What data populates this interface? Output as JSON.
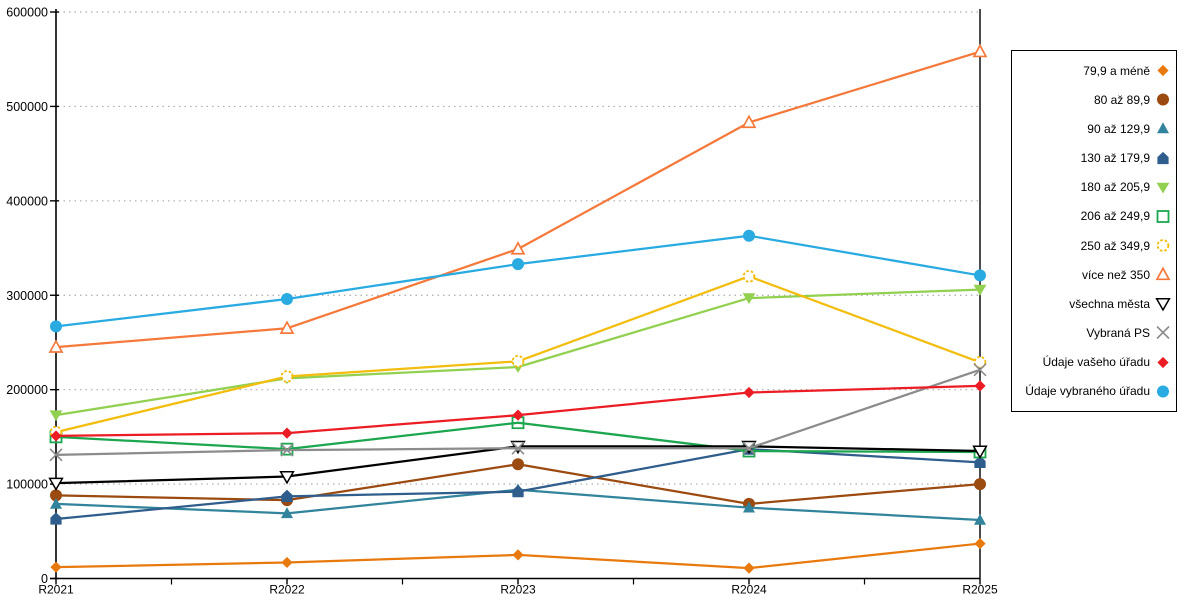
{
  "chart_data": {
    "type": "line",
    "title": "",
    "categories": [
      "R2021",
      "R2022",
      "R2023",
      "R2024",
      "R2025"
    ],
    "y_axis": {
      "min": 0,
      "max": 600000,
      "step": 100000,
      "tick_labels": [
        "0",
        "100000",
        "200000",
        "300000",
        "400000",
        "500000",
        "600000"
      ]
    },
    "grid": "horizontal-dotted",
    "legend_position": "right",
    "series": [
      {
        "name": "79,9 a méně",
        "marker": "diamond-filled",
        "color": "#E8790D",
        "values": [
          12000,
          17000,
          25000,
          11000,
          37000
        ]
      },
      {
        "name": "80 až 89,9",
        "marker": "circle-filled",
        "color": "#9B4A10",
        "values": [
          88000,
          83000,
          121000,
          79000,
          100000
        ]
      },
      {
        "name": "90 až 129,9",
        "marker": "triangle-up-filled",
        "color": "#31849B",
        "values": [
          79000,
          69000,
          94000,
          75000,
          62000
        ]
      },
      {
        "name": "130 až 179,9",
        "marker": "pentagon-filled",
        "color": "#2F5D8C",
        "values": [
          63000,
          87000,
          92000,
          137000,
          123000
        ]
      },
      {
        "name": "180 až 205,9",
        "marker": "triangle-down-filled",
        "color": "#92D050",
        "values": [
          173000,
          212000,
          224000,
          297000,
          306000
        ]
      },
      {
        "name": "206 až 249,9",
        "marker": "square-open",
        "color": "#1CA64F",
        "values": [
          150000,
          137000,
          165000,
          135000,
          134000
        ]
      },
      {
        "name": "250 až 349,9",
        "marker": "circle-open-dashed",
        "color": "#F2BD0D",
        "values": [
          155000,
          214000,
          230000,
          320000,
          229000
        ]
      },
      {
        "name": "více než 350",
        "marker": "triangle-up-open",
        "color": "#F4793B",
        "values": [
          245000,
          265000,
          349000,
          483000,
          558000
        ]
      },
      {
        "name": "všechna města",
        "marker": "triangle-down-open",
        "color": "#000000",
        "values": [
          101000,
          108000,
          140000,
          140000,
          135000
        ]
      },
      {
        "name": "Vybraná PS",
        "marker": "x",
        "color": "#8C8C8C",
        "values": [
          131000,
          136000,
          138000,
          138000,
          221000
        ]
      },
      {
        "name": "Údaje vašeho úřadu",
        "marker": "diamond-filled",
        "color": "#EC1C24",
        "values": [
          151000,
          154000,
          173000,
          197000,
          204000
        ]
      },
      {
        "name": "Údaje vybraného úřadu",
        "marker": "circle-filled",
        "color": "#29ABE2",
        "values": [
          267000,
          296000,
          333000,
          363000,
          321000
        ]
      }
    ],
    "style": {
      "gridline_color": "#ABABAB",
      "axis_color": "#000000",
      "background": "#FFFFFF"
    }
  }
}
